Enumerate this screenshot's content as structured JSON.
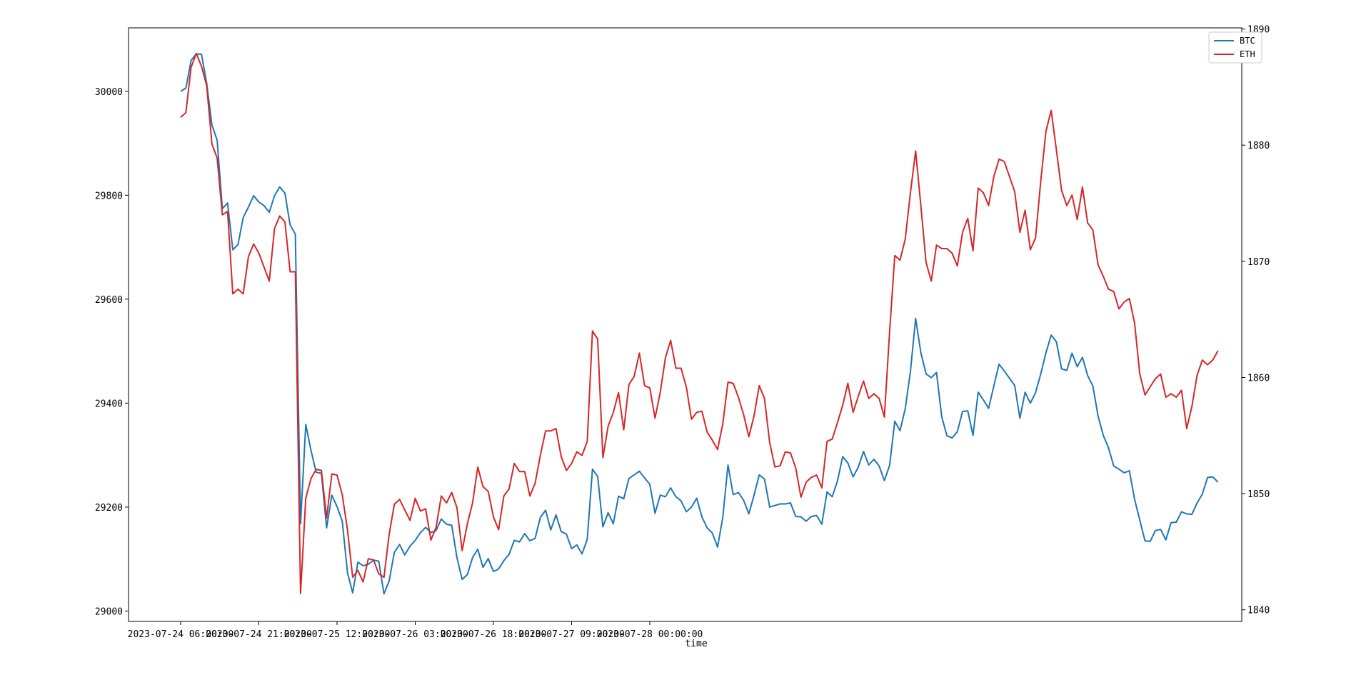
{
  "chart_data": {
    "type": "line",
    "xlabel": "time",
    "ylabel": "",
    "x_start": "2023-07-24 06:00:00",
    "x_interval": "1 hour",
    "x_ticks": [
      "2023-07-24 06:00:00",
      "2023-07-24 21:00:00",
      "2023-07-25 12:00:00",
      "2023-07-26 03:00:00",
      "2023-07-26 18:00:00",
      "2023-07-27 09:00:00",
      "2023-07-28 00:00:00"
    ],
    "grid": false,
    "legend_position": "top-right",
    "y_left": {
      "ticks": [
        29000,
        29200,
        29400,
        29600,
        29800,
        30000
      ],
      "range": [
        28980,
        30122
      ]
    },
    "y_right": {
      "ticks": [
        1840,
        1850,
        1860,
        1870,
        1880,
        1890
      ],
      "range": [
        1839.0,
        1890.1
      ]
    },
    "series": [
      {
        "name": "BTC",
        "axis": "left",
        "color": "#1f77b4",
        "values": [
          30000,
          30006,
          30059,
          30072,
          30071,
          30015,
          29935,
          29906,
          29774,
          29785,
          29695,
          29705,
          29757,
          29777,
          29799,
          29787,
          29780,
          29767,
          29799,
          29816,
          29804,
          29743,
          29725,
          29168,
          29359,
          29309,
          29267,
          29265,
          29160,
          29223,
          29201,
          29173,
          29074,
          29035,
          29094,
          29087,
          29090,
          29098,
          29096,
          29033,
          29058,
          29113,
          29128,
          29108,
          29125,
          29136,
          29151,
          29161,
          29151,
          29155,
          29177,
          29167,
          29165,
          29103,
          29061,
          29070,
          29103,
          29119,
          29084,
          29101,
          29076,
          29081,
          29097,
          29109,
          29136,
          29133,
          29149,
          29135,
          29140,
          29180,
          29194,
          29156,
          29185,
          29153,
          29148,
          29120,
          29127,
          29110,
          29138,
          29273,
          29259,
          29162,
          29189,
          29168,
          29221,
          29216,
          29255,
          29262,
          29269,
          29256,
          29244,
          29188,
          29223,
          29220,
          29237,
          29220,
          29212,
          29191,
          29200,
          29217,
          29181,
          29160,
          29150,
          29123,
          29180,
          29281,
          29224,
          29228,
          29213,
          29187,
          29223,
          29262,
          29254,
          29200,
          29203,
          29206,
          29206,
          29208,
          29182,
          29181,
          29173,
          29182,
          29184,
          29167,
          29229,
          29220,
          29250,
          29297,
          29285,
          29258,
          29277,
          29307,
          29281,
          29292,
          29279,
          29251,
          29280,
          29365,
          29347,
          29389,
          29461,
          29563,
          29497,
          29456,
          29449,
          29459,
          29374,
          29337,
          29333,
          29345,
          29384,
          29385,
          29338,
          29421,
          29406,
          29390,
          29433,
          29475,
          29462,
          29448,
          29434,
          29371,
          29421,
          29400,
          29420,
          29456,
          29497,
          29531,
          29518,
          29466,
          29463,
          29496,
          29470,
          29488,
          29453,
          29433,
          29375,
          29338,
          29314,
          29279,
          29273,
          29266,
          29270,
          29215,
          29175,
          29135,
          29134,
          29155,
          29157,
          29137,
          29170,
          29171,
          29191,
          29187,
          29186,
          29208,
          29225,
          29257,
          29258,
          29248
        ]
      },
      {
        "name": "ETH",
        "axis": "right",
        "color": "#d62728",
        "values": [
          1882.4,
          1882.8,
          1886.7,
          1887.9,
          1886.8,
          1885.1,
          1880.1,
          1878.9,
          1874.0,
          1874.3,
          1867.2,
          1867.6,
          1867.2,
          1870.4,
          1871.5,
          1870.7,
          1869.5,
          1868.3,
          1872.8,
          1873.9,
          1873.4,
          1869.1,
          1869.1,
          1841.4,
          1849.6,
          1851.3,
          1852.1,
          1852.0,
          1847.9,
          1851.7,
          1851.6,
          1849.9,
          1846.9,
          1842.8,
          1843.4,
          1842.4,
          1844.4,
          1844.3,
          1843.1,
          1842.8,
          1846.5,
          1849.1,
          1849.5,
          1848.6,
          1847.7,
          1849.6,
          1848.5,
          1848.7,
          1846.0,
          1847.1,
          1849.8,
          1849.2,
          1850.1,
          1848.8,
          1845.1,
          1847.4,
          1849.2,
          1852.3,
          1850.6,
          1850.2,
          1848.0,
          1846.9,
          1849.8,
          1850.4,
          1852.6,
          1851.9,
          1851.9,
          1849.8,
          1850.9,
          1853.3,
          1855.4,
          1855.4,
          1855.6,
          1853.2,
          1852.0,
          1852.6,
          1853.6,
          1853.3,
          1854.5,
          1864.0,
          1863.3,
          1853.1,
          1855.8,
          1857.0,
          1858.7,
          1855.5,
          1859.4,
          1860.1,
          1862.1,
          1859.3,
          1859.1,
          1856.5,
          1858.7,
          1861.7,
          1863.2,
          1860.8,
          1860.8,
          1859.2,
          1856.4,
          1857.0,
          1857.1,
          1855.3,
          1854.6,
          1853.8,
          1856.0,
          1859.6,
          1859.5,
          1858.3,
          1856.8,
          1854.9,
          1856.7,
          1859.3,
          1858.2,
          1854.4,
          1852.3,
          1852.4,
          1853.6,
          1853.5,
          1852.2,
          1849.7,
          1851.0,
          1851.4,
          1851.6,
          1850.5,
          1854.5,
          1854.7,
          1856.1,
          1857.6,
          1859.5,
          1857.0,
          1858.4,
          1859.7,
          1858.2,
          1858.6,
          1858.2,
          1856.6,
          1863.9,
          1870.5,
          1870.1,
          1871.9,
          1875.9,
          1879.5,
          1874.8,
          1869.9,
          1868.3,
          1871.4,
          1871.1,
          1871.1,
          1870.7,
          1869.6,
          1872.5,
          1873.7,
          1870.9,
          1876.3,
          1875.9,
          1874.8,
          1877.3,
          1878.8,
          1878.6,
          1877.3,
          1876.0,
          1872.5,
          1874.4,
          1871.0,
          1872.0,
          1876.9,
          1881.2,
          1883.0,
          1879.6,
          1876.1,
          1874.8,
          1875.7,
          1873.6,
          1876.4,
          1873.3,
          1872.7,
          1869.7,
          1868.7,
          1867.6,
          1867.4,
          1865.9,
          1866.5,
          1866.8,
          1864.7,
          1860.3,
          1858.5,
          1859.2,
          1859.9,
          1860.3,
          1858.3,
          1858.6,
          1858.3,
          1858.9,
          1855.6,
          1857.5,
          1860.2,
          1861.5,
          1861.1,
          1861.5,
          1862.3
        ]
      }
    ]
  }
}
